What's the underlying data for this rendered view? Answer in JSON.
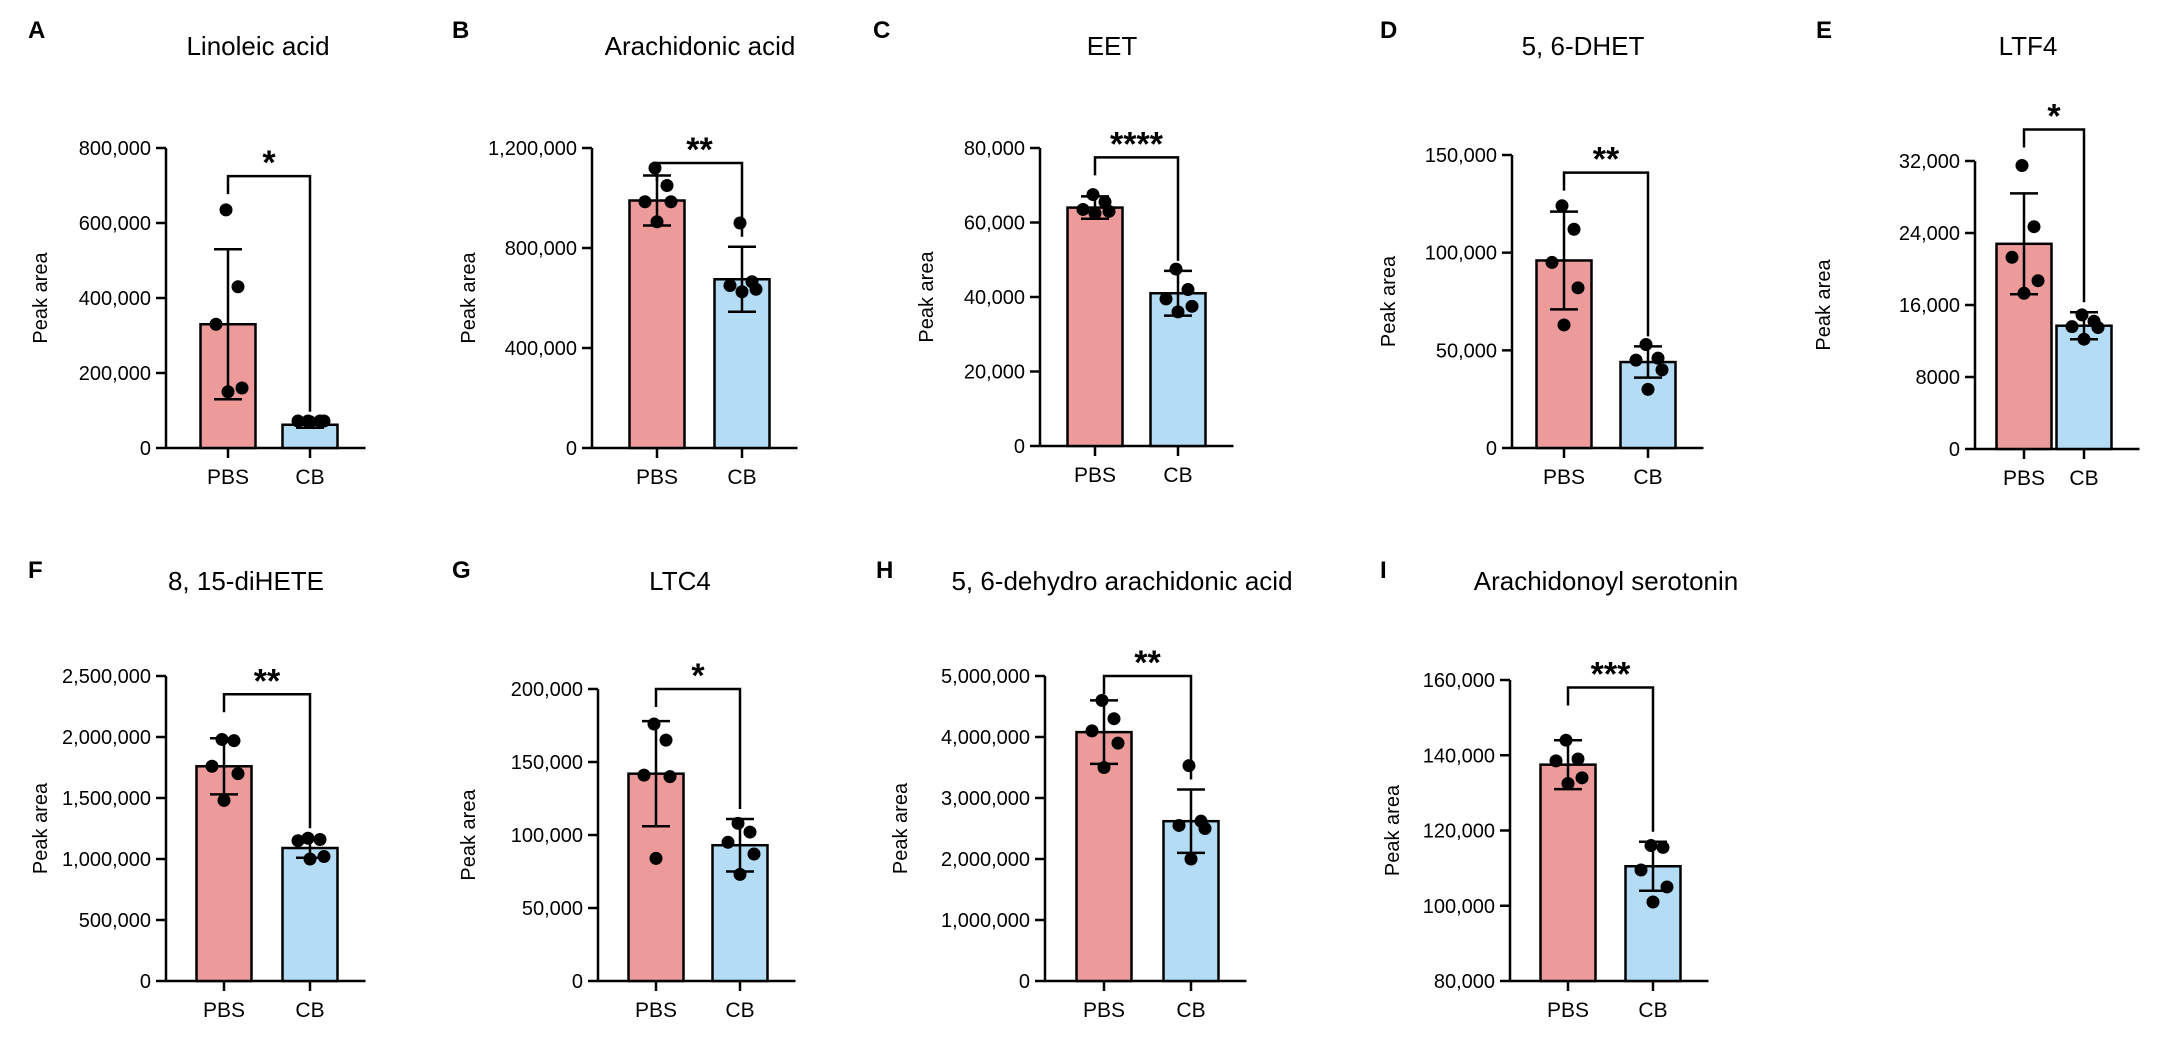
{
  "chart_data": [
    {
      "panel": "A",
      "title": "Linoleic acid",
      "type": "bar",
      "ylabel": "Peak area",
      "ylim": [
        0,
        800000
      ],
      "ticks": [
        0,
        200000,
        400000,
        600000,
        800000
      ],
      "tick_labels": [
        "0",
        "200,000",
        "400,000",
        "600,000",
        "800,000"
      ],
      "categories": [
        "PBS",
        "CB"
      ],
      "values": [
        330000,
        62000
      ],
      "sd": [
        200000,
        8000
      ],
      "points": [
        [
          635000,
          430000,
          330000,
          160000,
          150000
        ],
        [
          72000,
          72000,
          72000,
          72000,
          70000
        ]
      ],
      "significance": "*",
      "sig_level": 725000
    },
    {
      "panel": "B",
      "title": "Arachidonic acid",
      "type": "bar",
      "ylabel": "Peak area",
      "ylim": [
        0,
        1200000
      ],
      "ticks": [
        0,
        400000,
        800000,
        1200000
      ],
      "tick_labels": [
        "0",
        "400,000",
        "800,000",
        "1,200,000"
      ],
      "categories": [
        "PBS",
        "CB"
      ],
      "values": [
        990000,
        675000
      ],
      "sd": [
        100000,
        130000
      ],
      "points": [
        [
          1120000,
          1050000,
          985000,
          985000,
          905000
        ],
        [
          900000,
          665000,
          650000,
          635000,
          625000
        ]
      ],
      "significance": "**",
      "sig_level": 1140000
    },
    {
      "panel": "C",
      "title": "EET",
      "type": "bar",
      "ylabel": "Peak area",
      "ylim": [
        0,
        80000
      ],
      "ticks": [
        0,
        20000,
        40000,
        60000,
        80000
      ],
      "tick_labels": [
        "0",
        "20,000",
        "40,000",
        "60,000",
        "80,000"
      ],
      "categories": [
        "PBS",
        "CB"
      ],
      "values": [
        64000,
        41000
      ],
      "sd": [
        3000,
        6000
      ],
      "points": [
        [
          67500,
          65500,
          63500,
          63000,
          62500
        ],
        [
          47500,
          42000,
          39500,
          37500,
          36000
        ]
      ],
      "significance": "****",
      "sig_level": 77500
    },
    {
      "panel": "D",
      "title": "5, 6-DHET",
      "type": "bar",
      "ylabel": "Peak area",
      "ylim": [
        0,
        150000
      ],
      "ticks": [
        0,
        50000,
        100000,
        150000
      ],
      "tick_labels": [
        "0",
        "50,000",
        "100,000",
        "150,000"
      ],
      "categories": [
        "PBS",
        "CB"
      ],
      "values": [
        96000,
        44000
      ],
      "sd": [
        25000,
        8000
      ],
      "points": [
        [
          124000,
          112000,
          95000,
          82000,
          63000
        ],
        [
          53000,
          46000,
          45000,
          40000,
          30000
        ]
      ],
      "significance": "**",
      "sig_level": 141000
    },
    {
      "panel": "E",
      "title": "LTF4",
      "type": "bar",
      "ylabel": "Peak area",
      "ylim": [
        0,
        32000
      ],
      "ticks": [
        0,
        8000,
        16000,
        24000,
        32000
      ],
      "tick_labels": [
        "0",
        "8000",
        "16,000",
        "24,000",
        "32,000"
      ],
      "categories": [
        "PBS",
        "CB"
      ],
      "values": [
        22800,
        13700
      ],
      "sd": [
        5600,
        1500
      ],
      "points": [
        [
          31500,
          24700,
          21300,
          18700,
          17300
        ],
        [
          14900,
          14200,
          13600,
          13500,
          12200
        ]
      ],
      "significance": "*",
      "sig_level": 35500
    },
    {
      "panel": "F",
      "title": "8, 15-diHETE",
      "type": "bar",
      "ylabel": "Peak area",
      "ylim": [
        0,
        2500000
      ],
      "ticks": [
        0,
        500000,
        1000000,
        1500000,
        2000000,
        2500000
      ],
      "tick_labels": [
        "0",
        "500,000",
        "1,000,000",
        "1,500,000",
        "2,000,000",
        "2,500,000"
      ],
      "categories": [
        "PBS",
        "CB"
      ],
      "values": [
        1760000,
        1090000
      ],
      "sd": [
        230000,
        80000
      ],
      "points": [
        [
          1980000,
          1970000,
          1760000,
          1700000,
          1480000
        ],
        [
          1170000,
          1160000,
          1150000,
          1020000,
          1000000
        ]
      ],
      "significance": "**",
      "sig_level": 2350000
    },
    {
      "panel": "G",
      "title": "LTC4",
      "type": "bar",
      "ylabel": "Peak area",
      "ylim": [
        0,
        200000
      ],
      "ticks": [
        0,
        50000,
        100000,
        150000,
        200000
      ],
      "tick_labels": [
        "0",
        "50,000",
        "100,000",
        "150,000",
        "200,000"
      ],
      "categories": [
        "PBS",
        "CB"
      ],
      "values": [
        142000,
        93000
      ],
      "sd": [
        36000,
        18000
      ],
      "points": [
        [
          176000,
          165000,
          141000,
          140000,
          84000
        ],
        [
          108000,
          102000,
          95000,
          87000,
          73000
        ]
      ],
      "significance": "*",
      "sig_level": 200000
    },
    {
      "panel": "H",
      "title": "5, 6-dehydro arachidonic acid",
      "type": "bar",
      "ylabel": "Peak area",
      "ylim": [
        0,
        5000000
      ],
      "ticks": [
        0,
        1000000,
        2000000,
        3000000,
        4000000,
        5000000
      ],
      "tick_labels": [
        "0",
        "1,000,000",
        "2,000,000",
        "3,000,000",
        "4,000,000",
        "5,000,000"
      ],
      "categories": [
        "PBS",
        "CB"
      ],
      "values": [
        4080000,
        2620000
      ],
      "sd": [
        520000,
        520000
      ],
      "points": [
        [
          4600000,
          4300000,
          4100000,
          3900000,
          3500000
        ],
        [
          3530000,
          2620000,
          2550000,
          2500000,
          2000000
        ]
      ],
      "significance": "**",
      "sig_level": 5000000
    },
    {
      "panel": "I",
      "title": "Arachidonoyl serotonin",
      "type": "bar",
      "ylabel": "Peak area",
      "ylim": [
        80000,
        160000
      ],
      "ticks": [
        80000,
        100000,
        120000,
        140000,
        160000
      ],
      "tick_labels": [
        "80,000",
        "100,000",
        "120,000",
        "140,000",
        "160,000"
      ],
      "categories": [
        "PBS",
        "CB"
      ],
      "values": [
        137500,
        110500
      ],
      "sd": [
        6500,
        6500
      ],
      "points": [
        [
          144000,
          139000,
          138500,
          134000,
          132500
        ],
        [
          116000,
          115500,
          109500,
          105000,
          101000
        ]
      ],
      "significance": "***",
      "sig_level": 158000
    }
  ],
  "colors": {
    "pbs_fill": "#EC9A9A",
    "cb_fill": "#B4DDF5",
    "stroke": "#000000"
  }
}
